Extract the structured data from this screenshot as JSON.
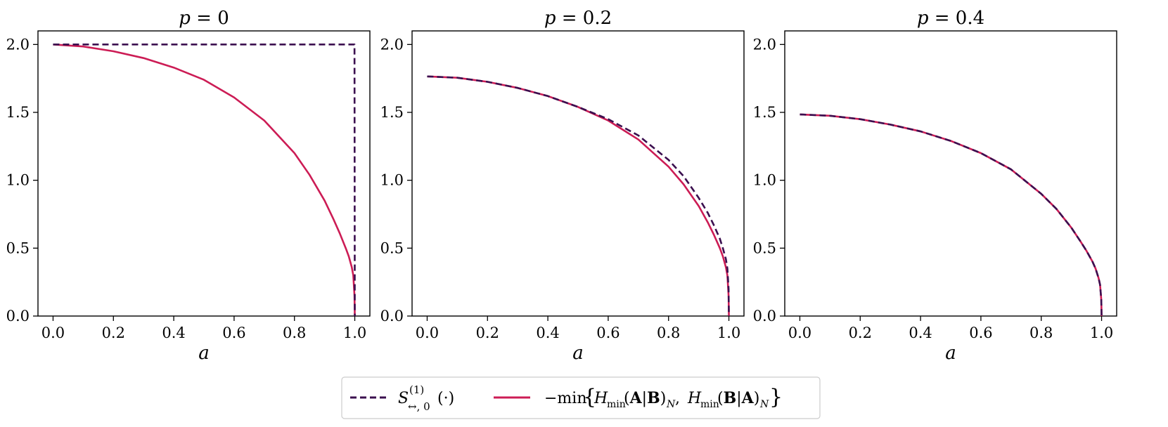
{
  "chart_data": [
    {
      "type": "line",
      "title": "p = 0",
      "xlabel": "a",
      "ylabel": "",
      "xlim": [
        -0.05,
        1.05
      ],
      "ylim": [
        0.0,
        2.1
      ],
      "xticks": [
        "0.0",
        "0.2",
        "0.4",
        "0.6",
        "0.8",
        "1.0"
      ],
      "yticks": [
        "0.0",
        "0.5",
        "1.0",
        "1.5",
        "2.0"
      ],
      "series": [
        {
          "legend_index": 0,
          "style": "dashed",
          "color": "#3b0f4f",
          "x": [
            0.0,
            0.2,
            0.4,
            0.6,
            0.8,
            0.95,
            0.99,
            0.999,
            1.0
          ],
          "y": [
            2.0,
            2.0,
            2.0,
            2.0,
            2.0,
            2.0,
            2.0,
            2.0,
            0.0
          ]
        },
        {
          "legend_index": 1,
          "style": "solid",
          "color": "#cc1c55",
          "x": [
            0.0,
            0.1,
            0.2,
            0.3,
            0.4,
            0.5,
            0.6,
            0.7,
            0.8,
            0.85,
            0.9,
            0.93,
            0.95,
            0.97,
            0.98,
            0.99,
            0.995,
            0.999,
            1.0
          ],
          "y": [
            2.0,
            1.985,
            1.95,
            1.9,
            1.83,
            1.74,
            1.61,
            1.44,
            1.2,
            1.04,
            0.85,
            0.71,
            0.61,
            0.5,
            0.44,
            0.36,
            0.3,
            0.15,
            0.0
          ]
        }
      ]
    },
    {
      "type": "line",
      "title": "p = 0.2",
      "xlabel": "a",
      "ylabel": "",
      "xlim": [
        -0.05,
        1.05
      ],
      "ylim": [
        0.0,
        2.1
      ],
      "xticks": [
        "0.0",
        "0.2",
        "0.4",
        "0.6",
        "0.8",
        "1.0"
      ],
      "yticks": [
        "0.0",
        "0.5",
        "1.0",
        "1.5",
        "2.0"
      ],
      "series": [
        {
          "legend_index": 0,
          "style": "dashed",
          "color": "#3b0f4f",
          "x": [
            0.0,
            0.1,
            0.2,
            0.3,
            0.4,
            0.5,
            0.6,
            0.7,
            0.8,
            0.85,
            0.9,
            0.93,
            0.95,
            0.97,
            0.98,
            0.99,
            0.995,
            0.999,
            1.0
          ],
          "y": [
            1.765,
            1.755,
            1.725,
            1.68,
            1.62,
            1.54,
            1.45,
            1.33,
            1.15,
            1.03,
            0.87,
            0.76,
            0.67,
            0.57,
            0.5,
            0.42,
            0.35,
            0.2,
            0.0
          ]
        },
        {
          "legend_index": 1,
          "style": "solid",
          "color": "#cc1c55",
          "x": [
            0.0,
            0.1,
            0.2,
            0.3,
            0.4,
            0.5,
            0.6,
            0.7,
            0.8,
            0.85,
            0.9,
            0.93,
            0.95,
            0.97,
            0.98,
            0.99,
            0.995,
            0.999,
            1.0
          ],
          "y": [
            1.765,
            1.755,
            1.725,
            1.68,
            1.62,
            1.54,
            1.44,
            1.3,
            1.1,
            0.97,
            0.81,
            0.69,
            0.6,
            0.5,
            0.44,
            0.36,
            0.3,
            0.15,
            0.0
          ]
        }
      ]
    },
    {
      "type": "line",
      "title": "p = 0.4",
      "xlabel": "a",
      "ylabel": "",
      "xlim": [
        -0.05,
        1.05
      ],
      "ylim": [
        0.0,
        2.1
      ],
      "xticks": [
        "0.0",
        "0.2",
        "0.4",
        "0.6",
        "0.8",
        "1.0"
      ],
      "yticks": [
        "0.0",
        "0.5",
        "1.0",
        "1.5",
        "2.0"
      ],
      "series": [
        {
          "legend_index": 0,
          "style": "dashed",
          "color": "#3b0f4f",
          "x": [
            0.0,
            0.1,
            0.2,
            0.3,
            0.4,
            0.5,
            0.6,
            0.7,
            0.8,
            0.85,
            0.9,
            0.93,
            0.95,
            0.97,
            0.98,
            0.99,
            0.995,
            0.999,
            1.0
          ],
          "y": [
            1.485,
            1.475,
            1.45,
            1.41,
            1.36,
            1.29,
            1.2,
            1.08,
            0.9,
            0.79,
            0.65,
            0.55,
            0.48,
            0.4,
            0.35,
            0.28,
            0.23,
            0.12,
            0.0
          ]
        },
        {
          "legend_index": 1,
          "style": "solid",
          "color": "#cc1c55",
          "x": [
            0.0,
            0.1,
            0.2,
            0.3,
            0.4,
            0.5,
            0.6,
            0.7,
            0.8,
            0.85,
            0.9,
            0.93,
            0.95,
            0.97,
            0.98,
            0.99,
            0.995,
            0.999,
            1.0
          ],
          "y": [
            1.485,
            1.475,
            1.45,
            1.41,
            1.36,
            1.29,
            1.2,
            1.08,
            0.9,
            0.79,
            0.65,
            0.55,
            0.48,
            0.4,
            0.35,
            0.28,
            0.23,
            0.12,
            0.0
          ]
        }
      ]
    }
  ],
  "legend": {
    "placement": "bottom-center",
    "entries": [
      {
        "style": "dashed",
        "color": "#3b0f4f",
        "label": "S^{(1)}_{↔, 0}(·)"
      },
      {
        "style": "solid",
        "color": "#cc1c55",
        "label": "−min{H_min(A|B)_N, H_min(B|A)_N}"
      }
    ]
  }
}
